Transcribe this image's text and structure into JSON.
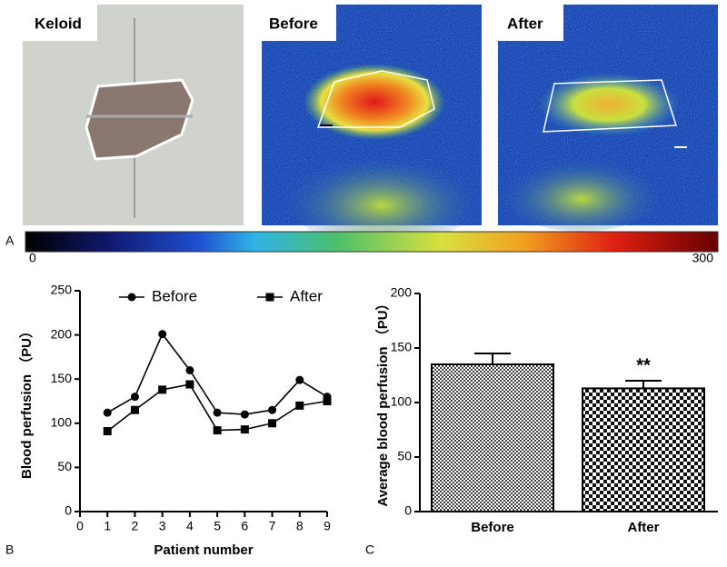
{
  "figure": {
    "image_labels": [
      "Keloid",
      "Before",
      "After"
    ],
    "colorbar": {
      "min": 0,
      "max": 300
    },
    "panel_labels": [
      "A",
      "B",
      "C"
    ]
  },
  "chart_data": [
    {
      "type": "line",
      "x": [
        1,
        2,
        3,
        4,
        5,
        6,
        7,
        8,
        9
      ],
      "series": [
        {
          "name": "Before",
          "color": "#000000",
          "marker": "circle",
          "values": [
            112,
            130,
            201,
            160,
            112,
            110,
            115,
            149,
            130
          ]
        },
        {
          "name": "After",
          "color": "#000000",
          "marker": "square",
          "values": [
            91,
            115,
            138,
            144,
            92,
            93,
            100,
            120,
            125
          ]
        }
      ],
      "xlabel": "Patient number",
      "ylabel": "Blood perfusion （PU）",
      "xlim": [
        0,
        9
      ],
      "xticks": [
        0,
        1,
        2,
        3,
        4,
        5,
        6,
        7,
        8,
        9
      ],
      "ylim": [
        0,
        250
      ],
      "yticks": [
        0,
        50,
        100,
        150,
        200,
        250
      ],
      "legend": "top"
    },
    {
      "type": "bar",
      "categories": [
        "Before",
        "After"
      ],
      "values": [
        135,
        113
      ],
      "errors": [
        10,
        7
      ],
      "significance": {
        "category": "After",
        "label": "**"
      },
      "ylabel": "Average blood perfusion （PU）",
      "ylim": [
        0,
        200
      ],
      "yticks": [
        0,
        50,
        100,
        150,
        200
      ]
    }
  ]
}
